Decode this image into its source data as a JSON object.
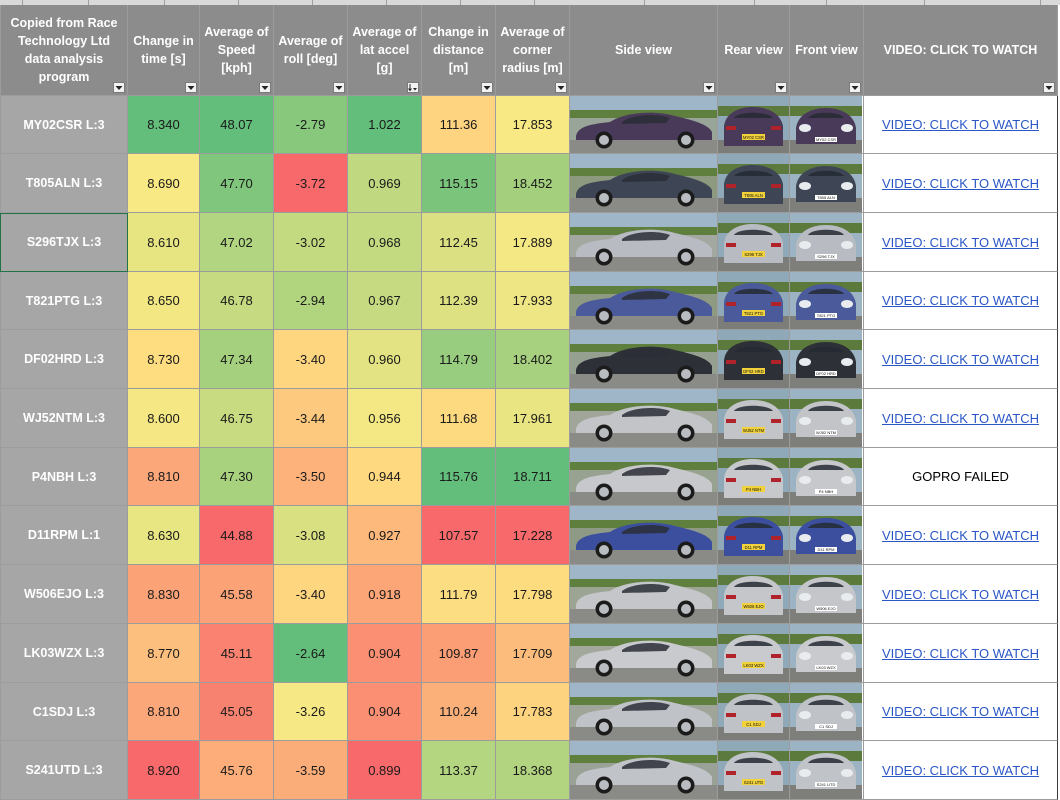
{
  "headers": [
    {
      "label": "Copied from Race Technology Ltd data analysis program"
    },
    {
      "label": "Change in time [s]"
    },
    {
      "label": "Average of Speed [kph]"
    },
    {
      "label": "Average of roll [deg]"
    },
    {
      "label": "Average of lat accel [g]"
    },
    {
      "label": "Change in distance [m]"
    },
    {
      "label": "Average of corner radius [m]"
    },
    {
      "label": "Side view"
    },
    {
      "label": "Rear view"
    },
    {
      "label": "Front view"
    },
    {
      "label": "VIDEO: CLICK TO WATCH"
    }
  ],
  "sorted_column": "Average of lat accel [g]",
  "rows": [
    {
      "label": "MY02CSR L:3",
      "time": "8.340",
      "speed": "48.07",
      "roll": "-2.79",
      "lat": "1.022",
      "dist": "111.36",
      "radius": "17.853",
      "video": "VIDEO: CLICK TO WATCH",
      "car_color": "#4a3a5a",
      "plate": "MY02 CSR"
    },
    {
      "label": "T805ALN L:3",
      "time": "8.690",
      "speed": "47.70",
      "roll": "-3.72",
      "lat": "0.969",
      "dist": "115.15",
      "radius": "18.452",
      "video": "VIDEO: CLICK TO WATCH",
      "car_color": "#3e4656",
      "plate": "T805 ALN"
    },
    {
      "label": "S296TJX L:3",
      "time": "8.610",
      "speed": "47.02",
      "roll": "-3.02",
      "lat": "0.968",
      "dist": "112.45",
      "radius": "17.889",
      "video": "VIDEO: CLICK TO WATCH",
      "car_color": "#b8bcc2",
      "plate": "S296 TJX"
    },
    {
      "label": "T821PTG L:3",
      "time": "8.650",
      "speed": "46.78",
      "roll": "-2.94",
      "lat": "0.967",
      "dist": "112.39",
      "radius": "17.933",
      "video": "VIDEO: CLICK TO WATCH",
      "car_color": "#4b5a9a",
      "plate": "T821 PTG"
    },
    {
      "label": "DF02HRD L:3",
      "time": "8.730",
      "speed": "47.34",
      "roll": "-3.40",
      "lat": "0.960",
      "dist": "114.79",
      "radius": "18.402",
      "video": "VIDEO: CLICK TO WATCH",
      "car_color": "#2e3038",
      "plate": "DF02 HRD"
    },
    {
      "label": "WJ52NTM L:3",
      "time": "8.600",
      "speed": "46.75",
      "roll": "-3.44",
      "lat": "0.956",
      "dist": "111.68",
      "radius": "17.961",
      "video": "VIDEO: CLICK TO WATCH",
      "car_color": "#c2c4c8",
      "plate": "WJ52 NTM"
    },
    {
      "label": "P4NBH L:3",
      "time": "8.810",
      "speed": "47.30",
      "roll": "-3.50",
      "lat": "0.944",
      "dist": "115.76",
      "radius": "18.711",
      "video": "GOPRO FAILED",
      "car_color": "#c6c8cc",
      "plate": "P4 NBH"
    },
    {
      "label": "D11RPM L:1",
      "time": "8.630",
      "speed": "44.88",
      "roll": "-3.08",
      "lat": "0.927",
      "dist": "107.57",
      "radius": "17.228",
      "video": "VIDEO: CLICK TO WATCH",
      "car_color": "#3c4f9e",
      "plate": "D11 RPM"
    },
    {
      "label": "W506EJO L:3",
      "time": "8.830",
      "speed": "45.58",
      "roll": "-3.40",
      "lat": "0.918",
      "dist": "111.79",
      "radius": "17.798",
      "video": "VIDEO: CLICK TO WATCH",
      "car_color": "#c4c6ca",
      "plate": "W506 EJO"
    },
    {
      "label": "LK03WZX L:3",
      "time": "8.770",
      "speed": "45.11",
      "roll": "-2.64",
      "lat": "0.904",
      "dist": "109.87",
      "radius": "17.709",
      "video": "VIDEO: CLICK TO WATCH",
      "car_color": "#c8cace",
      "plate": "LK03 WZX"
    },
    {
      "label": "C1SDJ L:3",
      "time": "8.810",
      "speed": "45.05",
      "roll": "-3.26",
      "lat": "0.904",
      "dist": "110.24",
      "radius": "17.783",
      "video": "VIDEO: CLICK TO WATCH",
      "car_color": "#bfc2c6",
      "plate": "C1 SDJ"
    },
    {
      "label": "S241UTD L:3",
      "time": "8.920",
      "speed": "45.76",
      "roll": "-3.59",
      "lat": "0.899",
      "dist": "113.37",
      "radius": "18.368",
      "video": "VIDEO: CLICK TO WATCH",
      "car_color": "#c0c3c8",
      "plate": "S241 UTD"
    }
  ],
  "heat_colors": {
    "time": [
      "#63be7b",
      "#f8e984",
      "#e7e582",
      "#f2e783",
      "#fedd81",
      "#f4e784",
      "#fca77a",
      "#e8e583",
      "#fba277",
      "#fdbf7d",
      "#fca77a",
      "#f8696b"
    ],
    "speed": [
      "#63be7b",
      "#80c67c",
      "#b1d580",
      "#c5da81",
      "#a5d17e",
      "#c8db81",
      "#a9d27f",
      "#f8696b",
      "#fba276",
      "#f98370",
      "#f88270",
      "#fcad79"
    ],
    "roll": [
      "#87c87d",
      "#f8696b",
      "#c3da81",
      "#b1d47f",
      "#fed680",
      "#fdc97e",
      "#fcb27a",
      "#d9e082",
      "#fed680",
      "#63be7b",
      "#f6e884",
      "#fbad79"
    ],
    "lat": [
      "#63be7b",
      "#c0d981",
      "#c3da81",
      "#c6da81",
      "#e3e383",
      "#f4e884",
      "#fed980",
      "#fdb87b",
      "#fca577",
      "#fa8f73",
      "#fa8f73",
      "#f8696b"
    ],
    "dist": [
      "#fed480",
      "#7ac47c",
      "#dbe082",
      "#dde182",
      "#98cc7e",
      "#fdda80",
      "#63be7b",
      "#f8696b",
      "#fddd81",
      "#fb9d75",
      "#fcb079",
      "#b5d680"
    ],
    "radius": [
      "#f9e984",
      "#a4d07e",
      "#f4e884",
      "#eee684",
      "#a8d17f",
      "#e9e583",
      "#63be7b",
      "#f8696b",
      "#fddc80",
      "#fcbd7c",
      "#fdd37f",
      "#b2d480"
    ]
  }
}
